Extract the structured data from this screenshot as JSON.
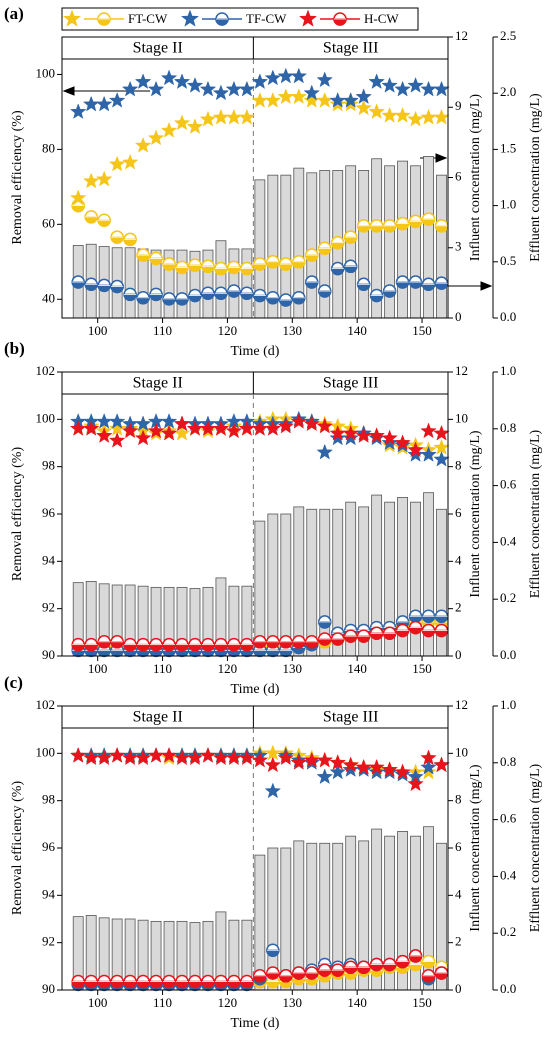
{
  "chart_data": [
    {
      "type": "combo",
      "panel_label": "(a)",
      "stages": [
        "Stage II",
        "Stage III"
      ],
      "stage_boundary": 124,
      "xlabel": "Time (d)",
      "ylabel": "Removal efficiency (%)",
      "y2label": "Influent concentration (mg/L)",
      "y3label": "Effluent concentration (mg/L)",
      "x": [
        97,
        99,
        101,
        103,
        105,
        107,
        109,
        111,
        113,
        115,
        117,
        119,
        121,
        123,
        125,
        127,
        129,
        131,
        133,
        135,
        137,
        139,
        141,
        143,
        145,
        147,
        149,
        151,
        153
      ],
      "xlim": [
        94.5,
        154
      ],
      "xticks": [
        100,
        110,
        120,
        130,
        140,
        150
      ],
      "ylim": [
        35,
        110
      ],
      "yticks": [
        40,
        60,
        80,
        100
      ],
      "y2lim": [
        0,
        12
      ],
      "y2ticks": [
        0,
        3,
        6,
        9,
        12
      ],
      "y3lim": [
        0,
        2.5
      ],
      "y3ticks": [
        {
          "value": 0,
          "label": "0.0"
        },
        0.5,
        {
          "value": 1,
          "label": "1.0"
        },
        1.5,
        {
          "value": 2,
          "label": "2.0"
        },
        2.5
      ],
      "influent": {
        "color": "#d9d9d9",
        "values": [
          3.1,
          3.15,
          3.05,
          3.0,
          3.0,
          2.95,
          2.9,
          2.9,
          2.9,
          2.85,
          2.9,
          3.3,
          2.95,
          2.95,
          5.9,
          6.1,
          6.1,
          6.4,
          6.2,
          6.3,
          6.3,
          6.5,
          6.3,
          6.8,
          6.5,
          6.7,
          6.5,
          6.9,
          6.1
        ]
      },
      "series": [
        {
          "name": "FT-CW",
          "color": "#f5c518",
          "values": [
            67,
            71.5,
            72,
            76,
            76.5,
            81,
            83,
            85,
            87,
            86,
            88,
            88.5,
            88.5,
            88.5,
            93,
            93,
            94,
            94,
            93,
            93,
            92,
            92,
            91,
            90,
            89,
            89,
            88,
            88.5,
            88.5
          ]
        },
        {
          "name": "TF-CW",
          "color": "#2e64a8",
          "values": [
            90,
            92,
            92,
            93,
            96,
            98,
            96,
            99,
            98,
            97,
            96,
            95,
            96,
            96,
            98,
            99,
            99.5,
            99.5,
            95,
            98.5,
            93,
            93,
            94,
            98,
            97,
            96,
            97,
            96,
            96
          ]
        }
      ],
      "effluent_series": [
        {
          "name": "FT-CW",
          "color": "#f5c518",
          "values": [
            1.0,
            0.9,
            0.87,
            0.72,
            0.7,
            0.56,
            0.53,
            0.48,
            0.45,
            0.47,
            0.46,
            0.44,
            0.45,
            0.44,
            0.48,
            0.5,
            0.48,
            0.5,
            0.56,
            0.62,
            0.67,
            0.72,
            0.82,
            0.82,
            0.82,
            0.84,
            0.86,
            0.88,
            0.82
          ]
        },
        {
          "name": "TF-CW",
          "color": "#2e64a8",
          "values": [
            0.32,
            0.3,
            0.29,
            0.28,
            0.21,
            0.18,
            0.21,
            0.17,
            0.17,
            0.2,
            0.22,
            0.22,
            0.24,
            0.22,
            0.2,
            0.18,
            0.16,
            0.18,
            0.32,
            0.24,
            0.44,
            0.46,
            0.3,
            0.2,
            0.24,
            0.32,
            0.32,
            0.3,
            0.31
          ]
        }
      ]
    },
    {
      "type": "combo",
      "panel_label": "(b)",
      "stages": [
        "Stage II",
        "Stage III"
      ],
      "stage_boundary": 124,
      "xlabel": "Time (d)",
      "ylabel": "Removal efficiency (%)",
      "y2label": "Influent concentration (mg/L)",
      "y3label": "Effluent concentration (mg/L)",
      "x": [
        97,
        99,
        101,
        103,
        105,
        107,
        109,
        111,
        113,
        115,
        117,
        119,
        121,
        123,
        125,
        127,
        129,
        131,
        133,
        135,
        137,
        139,
        141,
        143,
        145,
        147,
        149,
        151,
        153
      ],
      "xlim": [
        94.5,
        154
      ],
      "xticks": [
        100,
        110,
        120,
        130,
        140,
        150
      ],
      "ylim": [
        90,
        102
      ],
      "yticks": [
        90,
        92,
        94,
        96,
        98,
        100,
        102
      ],
      "y2lim": [
        0,
        12
      ],
      "y2ticks": [
        0,
        2,
        4,
        6,
        8,
        10,
        12
      ],
      "y3lim": [
        0,
        1
      ],
      "y3ticks": [
        {
          "value": 0,
          "label": "0.0"
        },
        0.2,
        0.4,
        0.6,
        0.8,
        {
          "value": 1,
          "label": "1.0"
        }
      ],
      "influent": {
        "color": "#d9d9d9",
        "values": [
          3.1,
          3.15,
          3.05,
          3.0,
          3.0,
          2.95,
          2.9,
          2.9,
          2.9,
          2.85,
          2.9,
          3.3,
          2.95,
          2.95,
          5.7,
          6.0,
          6.0,
          6.3,
          6.2,
          6.2,
          6.2,
          6.5,
          6.3,
          6.8,
          6.5,
          6.7,
          6.5,
          6.9,
          6.2
        ]
      },
      "series": [
        {
          "name": "FT-CW",
          "color": "#f5c518",
          "values": [
            99.6,
            99.7,
            99.5,
            99.6,
            99.6,
            99.5,
            99.4,
            99.5,
            99.4,
            99.6,
            99.5,
            99.6,
            99.7,
            99.6,
            99.9,
            100,
            100,
            99.9,
            99.9,
            99.8,
            99.7,
            99.6,
            99.4,
            99.3,
            98.9,
            98.8,
            98.9,
            98.7,
            98.8
          ]
        },
        {
          "name": "TF-CW",
          "color": "#2e64a8",
          "values": [
            99.9,
            99.9,
            99.9,
            99.9,
            99.8,
            99.8,
            99.9,
            99.9,
            99.8,
            99.8,
            99.8,
            99.8,
            99.9,
            99.9,
            99.8,
            99.8,
            99.8,
            100,
            99.9,
            98.6,
            99.2,
            99.2,
            99.4,
            99.2,
            99.0,
            98.9,
            98.5,
            98.5,
            98.3
          ]
        },
        {
          "name": "H-CW",
          "color": "#e8141c",
          "values": [
            99.6,
            99.6,
            99.3,
            99.1,
            99.5,
            99.2,
            99.5,
            99.4,
            99.8,
            99.6,
            99.6,
            99.6,
            99.5,
            99.6,
            99.6,
            99.6,
            99.7,
            99.9,
            99.8,
            99.7,
            99.4,
            99.4,
            99.3,
            99.3,
            99.2,
            99.0,
            98.7,
            99.5,
            99.4
          ]
        }
      ],
      "effluent_series": [
        {
          "name": "FT-CW",
          "color": "#f5c518",
          "values": [
            0.03,
            0.03,
            0.03,
            0.03,
            0.03,
            0.03,
            0.03,
            0.03,
            0.03,
            0.03,
            0.03,
            0.03,
            0.03,
            0.03,
            0.03,
            0.03,
            0.03,
            0.04,
            0.05,
            0.05,
            0.06,
            0.07,
            0.08,
            0.09,
            0.1,
            0.11,
            0.12,
            0.12,
            0.12
          ]
        },
        {
          "name": "TF-CW",
          "color": "#2e64a8",
          "values": [
            0.02,
            0.02,
            0.02,
            0.02,
            0.02,
            0.02,
            0.02,
            0.02,
            0.02,
            0.02,
            0.02,
            0.02,
            0.02,
            0.02,
            0.02,
            0.02,
            0.02,
            0.03,
            0.04,
            0.12,
            0.08,
            0.09,
            0.09,
            0.1,
            0.1,
            0.12,
            0.14,
            0.14,
            0.14
          ]
        },
        {
          "name": "H-CW",
          "color": "#e8141c",
          "values": [
            0.04,
            0.04,
            0.05,
            0.05,
            0.04,
            0.04,
            0.04,
            0.04,
            0.04,
            0.04,
            0.04,
            0.04,
            0.04,
            0.04,
            0.05,
            0.05,
            0.05,
            0.05,
            0.05,
            0.06,
            0.06,
            0.07,
            0.07,
            0.08,
            0.08,
            0.09,
            0.1,
            0.09,
            0.09
          ]
        }
      ]
    },
    {
      "type": "combo",
      "panel_label": "(c)",
      "stages": [
        "Stage II",
        "Stage III"
      ],
      "stage_boundary": 124,
      "xlabel": "Time (d)",
      "ylabel": "Removal efficiency (%)",
      "y2label": "Influent concentration (mg/L)",
      "y3label": "Effluent concentration (mg/L)",
      "x": [
        97,
        99,
        101,
        103,
        105,
        107,
        109,
        111,
        113,
        115,
        117,
        119,
        121,
        123,
        125,
        127,
        129,
        131,
        133,
        135,
        137,
        139,
        141,
        143,
        145,
        147,
        149,
        151,
        153
      ],
      "xlim": [
        94.5,
        154
      ],
      "xticks": [
        100,
        110,
        120,
        130,
        140,
        150
      ],
      "ylim": [
        90,
        102
      ],
      "yticks": [
        90,
        92,
        94,
        96,
        98,
        100,
        102
      ],
      "y2lim": [
        0,
        12
      ],
      "y2ticks": [
        0,
        2,
        4,
        6,
        8,
        10,
        12
      ],
      "y3lim": [
        0,
        1
      ],
      "y3ticks": [
        {
          "value": 0,
          "label": "0.0"
        },
        0.2,
        0.4,
        0.6,
        0.8,
        {
          "value": 1,
          "label": "1.0"
        }
      ],
      "influent": {
        "color": "#d9d9d9",
        "values": [
          3.1,
          3.15,
          3.05,
          3.0,
          3.0,
          2.95,
          2.9,
          2.9,
          2.9,
          2.85,
          2.9,
          3.3,
          2.95,
          2.95,
          5.7,
          6.0,
          6.0,
          6.3,
          6.2,
          6.2,
          6.2,
          6.5,
          6.3,
          6.8,
          6.5,
          6.7,
          6.5,
          6.9,
          6.2
        ]
      },
      "series": [
        {
          "name": "FT-CW",
          "color": "#f5c518",
          "values": [
            99.9,
            99.9,
            99.9,
            99.9,
            99.9,
            99.9,
            99.9,
            99.8,
            99.9,
            99.9,
            99.9,
            99.9,
            99.9,
            99.9,
            100,
            100,
            100,
            99.9,
            99.8,
            99.7,
            99.6,
            99.5,
            99.4,
            99.3,
            99.3,
            99.2,
            99.2,
            99.2,
            99.5
          ]
        },
        {
          "name": "TF-CW",
          "color": "#2e64a8",
          "values": [
            99.9,
            99.9,
            99.9,
            99.9,
            99.9,
            99.9,
            99.9,
            99.9,
            99.9,
            99.9,
            99.9,
            99.9,
            99.9,
            99.9,
            99.9,
            98.4,
            99.9,
            99.7,
            99.6,
            99.0,
            99.2,
            99.3,
            99.3,
            99.2,
            99.2,
            99.1,
            99.0,
            99.4,
            99.5
          ]
        },
        {
          "name": "H-CW",
          "color": "#e8141c",
          "values": [
            99.9,
            99.8,
            99.8,
            99.9,
            99.8,
            99.8,
            99.9,
            99.9,
            99.8,
            99.8,
            99.9,
            99.8,
            99.8,
            99.8,
            99.7,
            99.5,
            99.8,
            99.6,
            99.7,
            99.7,
            99.6,
            99.5,
            99.4,
            99.4,
            99.3,
            99.2,
            98.7,
            99.8,
            99.5
          ]
        }
      ],
      "effluent_series": [
        {
          "name": "FT-CW",
          "color": "#f5c518",
          "values": [
            0.02,
            0.02,
            0.02,
            0.02,
            0.02,
            0.02,
            0.02,
            0.02,
            0.02,
            0.02,
            0.02,
            0.02,
            0.02,
            0.02,
            0.03,
            0.03,
            0.03,
            0.04,
            0.04,
            0.05,
            0.06,
            0.06,
            0.07,
            0.07,
            0.08,
            0.08,
            0.09,
            0.1,
            0.08
          ]
        },
        {
          "name": "TF-CW",
          "color": "#2e64a8",
          "values": [
            0.02,
            0.02,
            0.02,
            0.02,
            0.02,
            0.02,
            0.02,
            0.02,
            0.02,
            0.02,
            0.02,
            0.02,
            0.02,
            0.02,
            0.04,
            0.14,
            0.05,
            0.06,
            0.07,
            0.09,
            0.08,
            0.09,
            0.08,
            0.09,
            0.09,
            0.1,
            0.12,
            0.04,
            0.06
          ]
        },
        {
          "name": "H-CW",
          "color": "#e8141c",
          "values": [
            0.03,
            0.03,
            0.03,
            0.03,
            0.03,
            0.03,
            0.03,
            0.03,
            0.03,
            0.03,
            0.03,
            0.03,
            0.03,
            0.03,
            0.05,
            0.06,
            0.05,
            0.06,
            0.06,
            0.07,
            0.07,
            0.08,
            0.08,
            0.09,
            0.09,
            0.1,
            0.12,
            0.05,
            0.06
          ]
        }
      ]
    }
  ]
}
